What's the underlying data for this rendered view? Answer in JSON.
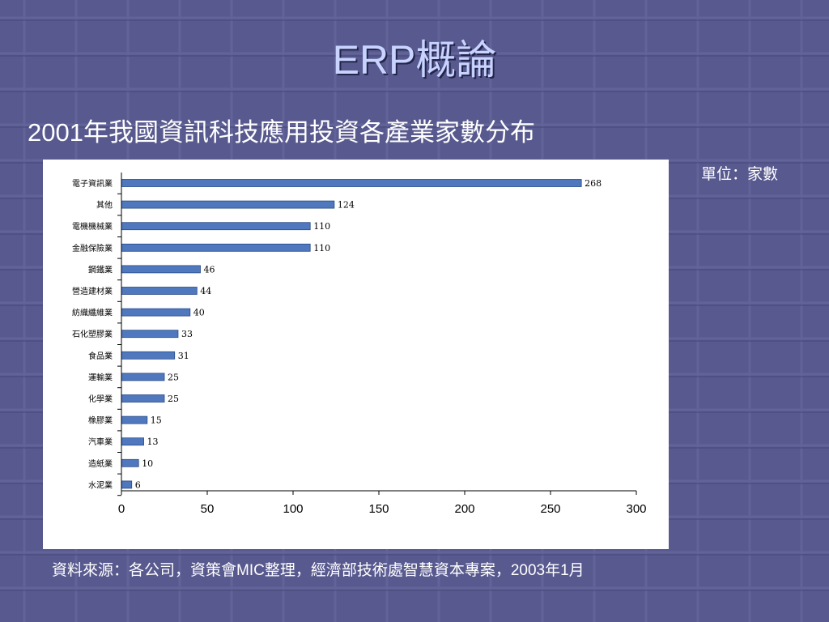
{
  "slide": {
    "title": "ERP概論",
    "subtitle": "2001年我國資訊科技應用投資各產業家數分布",
    "unit": "單位：家數",
    "source": "資料來源：各公司，資策會MIC整理，經濟部技術處智慧資本專案，2003年1月"
  },
  "colors": {
    "background": "#58598e",
    "bar_fill": "#4f78be",
    "bar_stroke": "#2a4a86",
    "title": "#c8d4ff"
  },
  "chart_data": {
    "type": "bar",
    "orientation": "horizontal",
    "categories": [
      "電子資訊業",
      "其他",
      "電機機械業",
      "金融保險業",
      "鋼鐵業",
      "營造建材業",
      "紡織纖維業",
      "石化塑膠業",
      "食品業",
      "運輸業",
      "化學業",
      "橡膠業",
      "汽車業",
      "造紙業",
      "水泥業"
    ],
    "values": [
      268,
      124,
      110,
      110,
      46,
      44,
      40,
      33,
      31,
      25,
      25,
      15,
      13,
      10,
      6
    ],
    "xlim": [
      0,
      300
    ],
    "xticks": [
      0,
      50,
      100,
      150,
      200,
      250,
      300
    ],
    "grid": false,
    "data_labels": true
  }
}
